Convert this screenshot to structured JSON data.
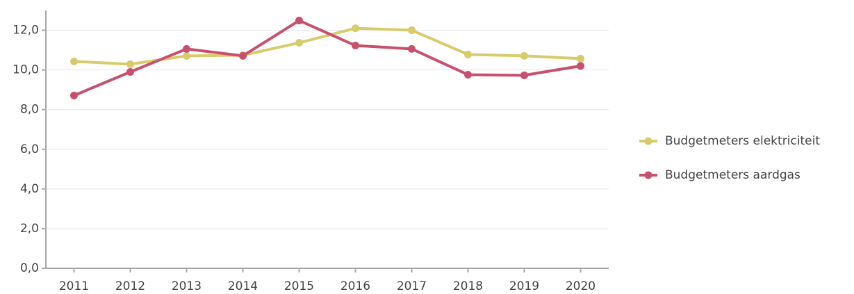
{
  "chart_data": {
    "type": "line",
    "categories": [
      "2011",
      "2012",
      "2013",
      "2014",
      "2015",
      "2016",
      "2017",
      "2018",
      "2019",
      "2020"
    ],
    "series": [
      {
        "name": "Budgetmeters elektriciteit",
        "color": "#d8cb6c",
        "values": [
          10.43,
          10.29,
          10.71,
          10.74,
          11.37,
          12.1,
          12.0,
          10.78,
          10.71,
          10.57
        ]
      },
      {
        "name": "Budgetmeters aardgas",
        "color": "#c8506e",
        "values": [
          8.71,
          9.9,
          11.06,
          10.71,
          12.49,
          11.23,
          11.06,
          9.76,
          9.73,
          10.2
        ]
      }
    ],
    "ylim": [
      0,
      13
    ],
    "yticks": [
      {
        "value": 0,
        "label": "0,0"
      },
      {
        "value": 2,
        "label": "2,0"
      },
      {
        "value": 4,
        "label": "4,0"
      },
      {
        "value": 6,
        "label": "6,0"
      },
      {
        "value": 8,
        "label": "8,0"
      },
      {
        "value": 10,
        "label": "10,0"
      },
      {
        "value": 12,
        "label": "12,0"
      }
    ],
    "grid": true,
    "legend": "right"
  }
}
